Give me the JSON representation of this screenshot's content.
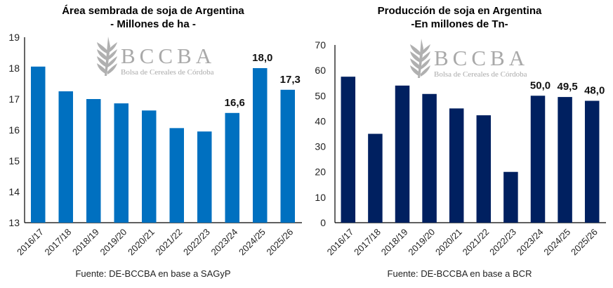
{
  "watermark": {
    "acronym": "BCCBA",
    "name": "Bolsa de Cereales de Córdoba"
  },
  "chart_data": [
    {
      "type": "bar",
      "title": "Área sembrada de soja de Argentina",
      "subtitle": "- Millones de ha -",
      "xlabel": "",
      "ylabel": "",
      "categories": [
        "2016/17",
        "2017/18",
        "2018/19",
        "2019/20",
        "2020/21",
        "2021/22",
        "2022/23",
        "2023/24",
        "2024/25",
        "2025/26"
      ],
      "values": [
        18.05,
        17.25,
        17.0,
        16.86,
        16.63,
        16.06,
        15.95,
        16.55,
        18.0,
        17.3
      ],
      "data_labels": [
        null,
        null,
        null,
        null,
        null,
        null,
        null,
        "16,6",
        "18,0",
        "17,3"
      ],
      "ylim": [
        13,
        19
      ],
      "yticks": [
        13,
        14,
        15,
        16,
        17,
        18,
        19
      ],
      "grid": false,
      "legend": "none",
      "color": "#0070C0",
      "source": "Fuente: DE-BCCBA en base a SAGyP"
    },
    {
      "type": "bar",
      "title": "Producción de soja en Argentina",
      "subtitle": "-En millones de Tn-",
      "xlabel": "",
      "ylabel": "",
      "categories": [
        "2016/17",
        "2017/18",
        "2018/19",
        "2019/20",
        "2020/21",
        "2021/22",
        "2022/23",
        "2023/24",
        "2024/25",
        "2025/26"
      ],
      "values": [
        57.5,
        35.0,
        54.0,
        50.7,
        45.0,
        42.3,
        20.0,
        50.0,
        49.5,
        48.0
      ],
      "data_labels": [
        null,
        null,
        null,
        null,
        null,
        null,
        null,
        "50,0",
        "49,5",
        "48,0"
      ],
      "ylim": [
        0,
        70
      ],
      "yticks": [
        0,
        10,
        20,
        30,
        40,
        50,
        60,
        70
      ],
      "grid": false,
      "legend": "none",
      "color": "#002060",
      "source": "Fuente: DE-BCCBA en base a BCR"
    }
  ]
}
